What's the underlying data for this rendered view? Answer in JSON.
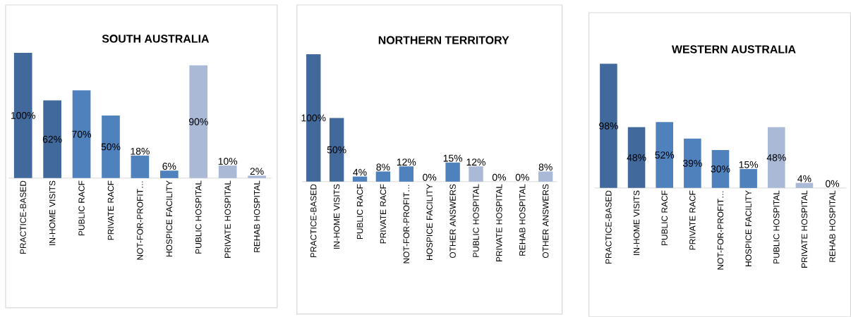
{
  "chart_data": [
    {
      "type": "bar",
      "title": "SOUTH AUSTRALIA",
      "categories": [
        "PRACTICE-BASED",
        "IN-HOME VISITS",
        "PUBLIC RACF",
        "PRIVATE RACF",
        "NOT-FOR-PROFIT…",
        "HOSPICE FACILITY",
        "PUBLIC HOSPITAL",
        "PRIVATE HOSPITAL",
        "REHAB HOSPITAL"
      ],
      "values": [
        100,
        62,
        70,
        50,
        18,
        6,
        90,
        10,
        2
      ],
      "value_labels": [
        "100%",
        "62%",
        "70%",
        "50%",
        "18%",
        "6%",
        "90%",
        "10%",
        "2%"
      ],
      "colors": [
        "#41699b",
        "#41699b",
        "#4f81bd",
        "#4f81bd",
        "#4f81bd",
        "#4f81bd",
        "#a9b9d6",
        "#a9b9d6",
        "#a9b9d6"
      ]
    },
    {
      "type": "bar",
      "title": "NORTHERN TERRITORY",
      "categories": [
        "PRACTICE-BASED",
        "IN-HOME VISITS",
        "PUBLIC RACF",
        "PRIVATE RACF",
        "NOT-FOR-PROFIT…",
        "HOSPICE FACILITY",
        "OTHER ANSWERS",
        "PUBLIC HOSPITAL",
        "PRIVATE HOSPITAL",
        "REHAB HOSPITAL",
        "OTHER ANSWERS"
      ],
      "values": [
        100,
        50,
        4,
        8,
        12,
        0,
        15,
        12,
        0,
        0,
        8
      ],
      "value_labels": [
        "100%",
        "50%",
        "4%",
        "8%",
        "12%",
        "0%",
        "15%",
        "12%",
        "0%",
        "0%",
        "8%"
      ],
      "colors": [
        "#41699b",
        "#41699b",
        "#4f81bd",
        "#4f81bd",
        "#4f81bd",
        "#4f81bd",
        "#4f81bd",
        "#a9b9d6",
        "#a9b9d6",
        "#a9b9d6",
        "#a9b9d6"
      ]
    },
    {
      "type": "bar",
      "title": "WESTERN AUSTRALIA",
      "categories": [
        "PRACTICE-BASED",
        "IN-HOME VISITS",
        "PUBLIC RACF",
        "PRIVATE RACF",
        "NOT-FOR-PROFIT…",
        "HOSPICE FACILITY",
        "PUBLIC HOSPITAL",
        "PRIVATE HOSPITAL",
        "REHAB HOSPITAL"
      ],
      "values": [
        98,
        48,
        52,
        39,
        30,
        15,
        48,
        4,
        0
      ],
      "value_labels": [
        "98%",
        "48%",
        "52%",
        "39%",
        "30%",
        "15%",
        "48%",
        "4%",
        "0%"
      ],
      "colors": [
        "#41699b",
        "#41699b",
        "#4f81bd",
        "#4f81bd",
        "#4f81bd",
        "#4f81bd",
        "#a9b9d6",
        "#a9b9d6",
        "#a9b9d6"
      ]
    }
  ]
}
